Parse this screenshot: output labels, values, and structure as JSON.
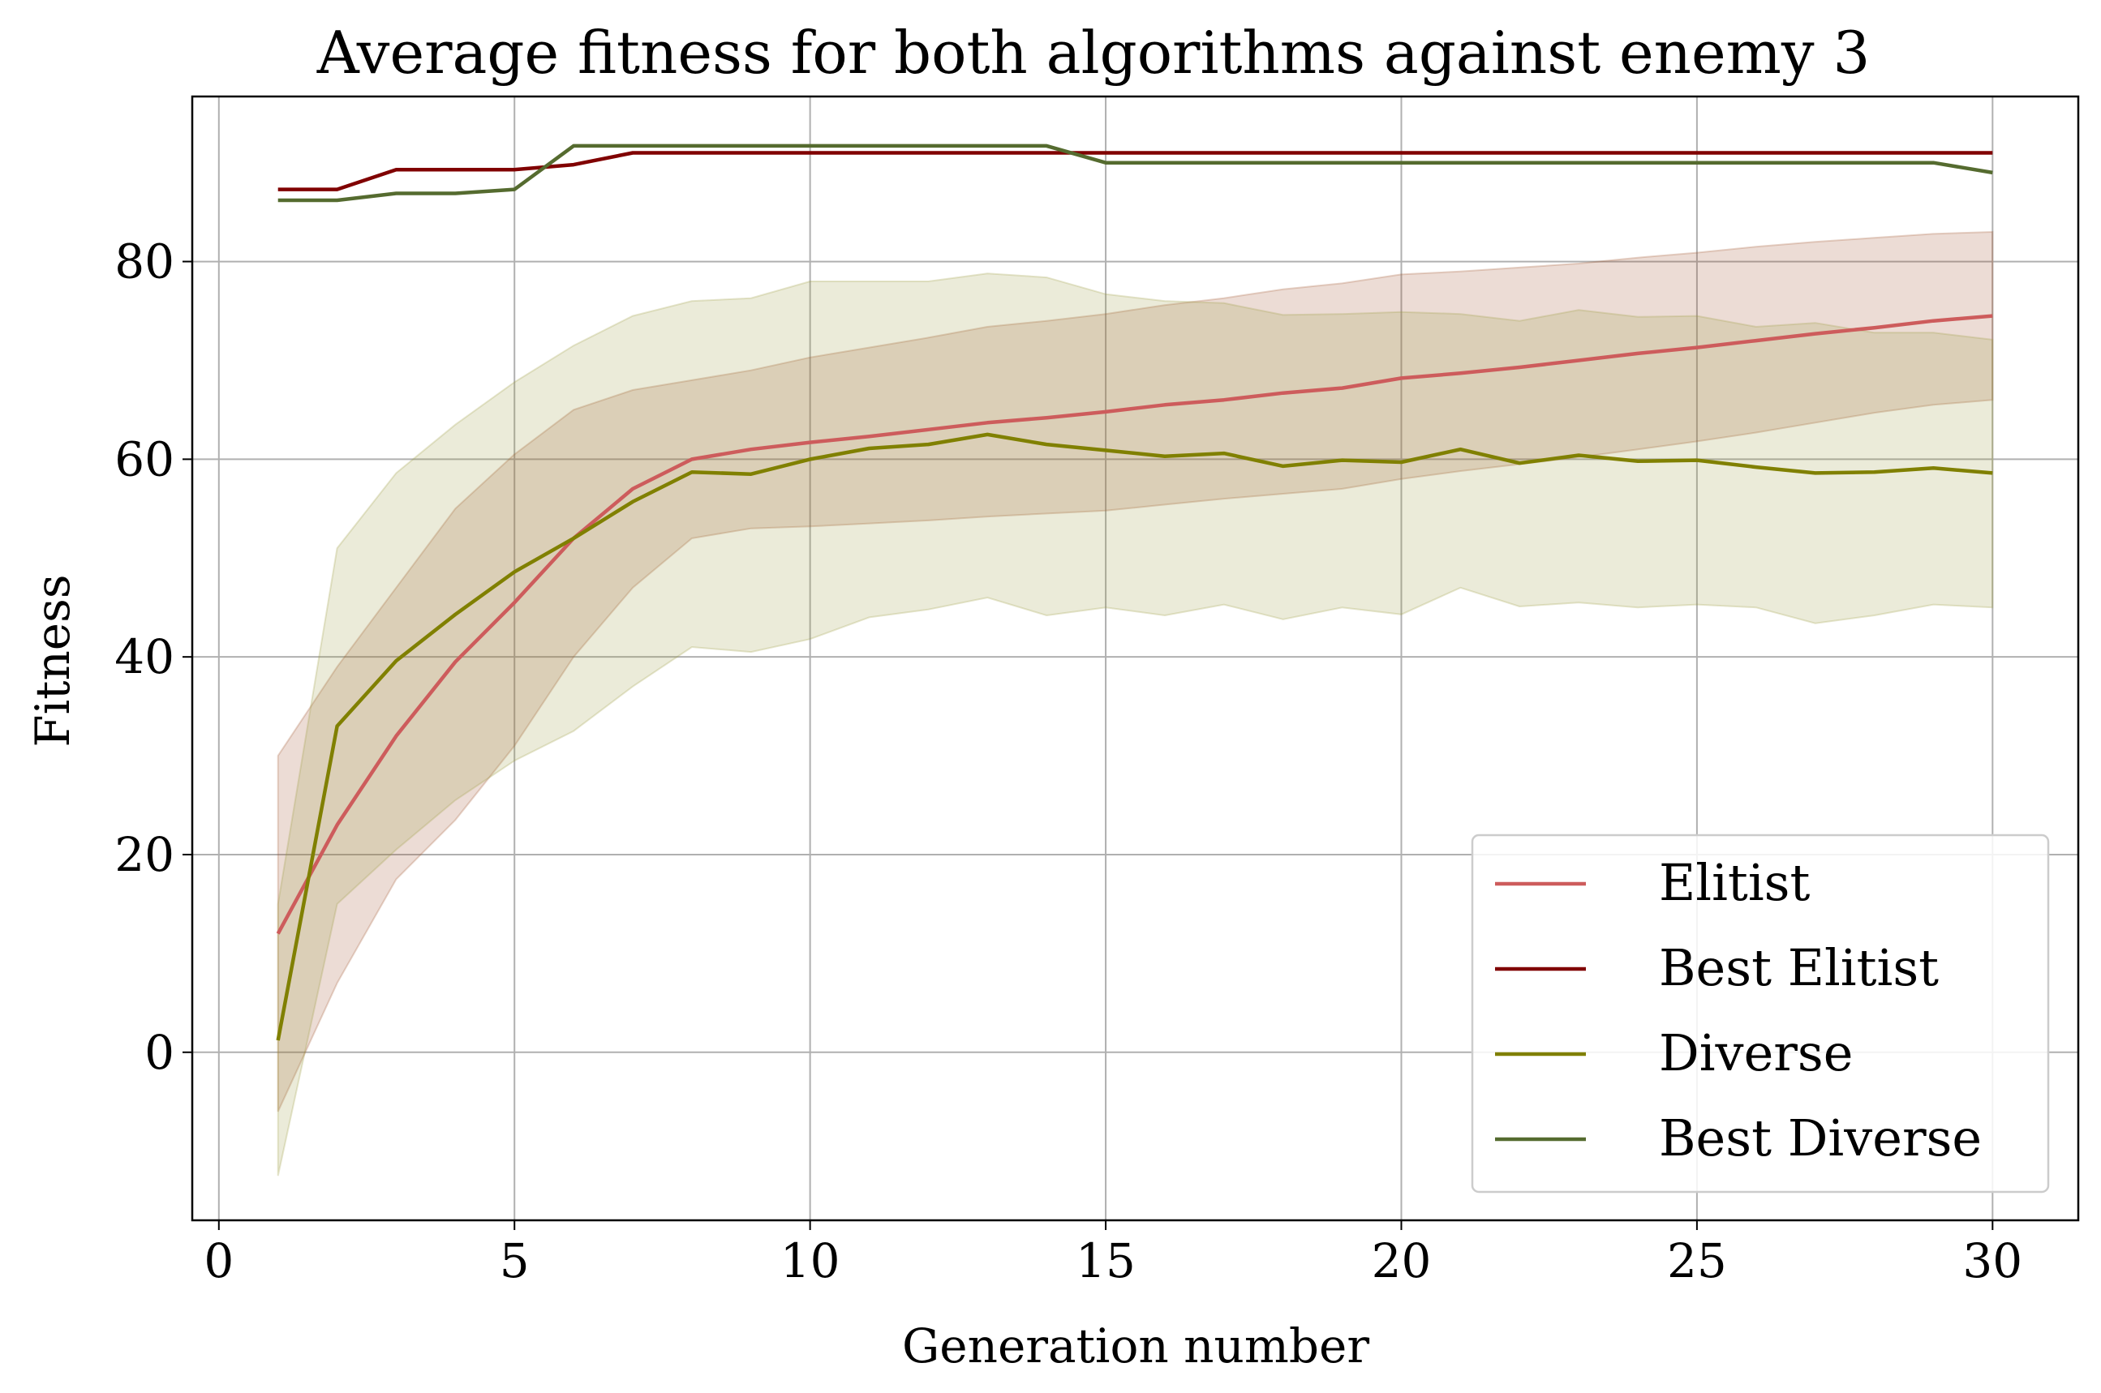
{
  "chart_data": {
    "type": "line",
    "title": "Average fitness for both algorithms against enemy 3",
    "xlabel": "Generation number",
    "ylabel": "Fitness",
    "xlim": [
      -0.45,
      31.45
    ],
    "ylim": [
      -17,
      96.7
    ],
    "xticks": [
      0,
      5,
      10,
      15,
      20,
      25,
      30
    ],
    "yticks": [
      0,
      20,
      40,
      60,
      80
    ],
    "grid": true,
    "legend_position": "bottom-right",
    "x": [
      1,
      2,
      3,
      4,
      5,
      6,
      7,
      8,
      9,
      10,
      11,
      12,
      13,
      14,
      15,
      16,
      17,
      18,
      19,
      20,
      21,
      22,
      23,
      24,
      25,
      26,
      27,
      28,
      29,
      30
    ],
    "series": [
      {
        "name": "Elitist",
        "color": "#cd5c5c",
        "band_color": "#a0522d",
        "values": [
          12,
          23,
          32,
          39.5,
          45.5,
          52,
          57,
          60,
          61,
          61.7,
          62.3,
          63,
          63.7,
          64.2,
          64.8,
          65.5,
          66,
          66.7,
          67.2,
          68.2,
          68.7,
          69.3,
          70,
          70.7,
          71.3,
          72,
          72.7,
          73.3,
          74,
          74.5
        ],
        "lower": [
          -6,
          7,
          17.5,
          23.5,
          31,
          40,
          47,
          52,
          53,
          53.2,
          53.5,
          53.8,
          54.2,
          54.5,
          54.8,
          55.4,
          56,
          56.5,
          57,
          58,
          58.8,
          59.5,
          60.2,
          61,
          61.8,
          62.7,
          63.7,
          64.7,
          65.5,
          66
        ],
        "upper": [
          30,
          39,
          47,
          55,
          60.5,
          65,
          67,
          68,
          69,
          70.3,
          71.3,
          72.3,
          73.4,
          74,
          74.7,
          75.6,
          76.3,
          77.2,
          77.8,
          78.7,
          79,
          79.4,
          79.8,
          80.4,
          80.9,
          81.5,
          82,
          82.4,
          82.8,
          83
        ]
      },
      {
        "name": "Best Elitist",
        "color": "#800000",
        "values": [
          87.3,
          87.3,
          89.3,
          89.3,
          89.3,
          89.8,
          91,
          91,
          91,
          91,
          91,
          91,
          91,
          91,
          91,
          91,
          91,
          91,
          91,
          91,
          91,
          91,
          91,
          91,
          91,
          91,
          91,
          91,
          91,
          91
        ]
      },
      {
        "name": "Diverse",
        "color": "#808000",
        "band_color": "#9b9b40",
        "values": [
          1.2,
          33,
          39.6,
          44.3,
          48.6,
          52,
          55.7,
          58.7,
          58.5,
          60,
          61.1,
          61.5,
          62.5,
          61.5,
          60.9,
          60.3,
          60.6,
          59.3,
          59.9,
          59.7,
          61,
          59.6,
          60.4,
          59.8,
          59.9,
          59.2,
          58.6,
          58.7,
          59.1,
          58.6
        ],
        "lower": [
          -12.5,
          15,
          20.5,
          25.5,
          29.5,
          32.5,
          37,
          41,
          40.5,
          41.8,
          44,
          44.8,
          46,
          44.2,
          45,
          44.2,
          45.3,
          43.8,
          45,
          44.3,
          47,
          45.1,
          45.5,
          45,
          45.3,
          45,
          43.4,
          44.2,
          45.3,
          45
        ],
        "upper": [
          15,
          51,
          58.6,
          63.5,
          67.8,
          71.5,
          74.5,
          76,
          76.3,
          78,
          78,
          78,
          78.8,
          78.4,
          76.7,
          76,
          75.8,
          74.6,
          74.7,
          74.9,
          74.7,
          74,
          75.1,
          74.4,
          74.5,
          73.4,
          73.8,
          72.8,
          72.8,
          72.1
        ]
      },
      {
        "name": "Best Diverse",
        "color": "#556b2f",
        "values": [
          86.2,
          86.2,
          86.9,
          86.9,
          87.3,
          91.7,
          91.7,
          91.7,
          91.7,
          91.7,
          91.7,
          91.7,
          91.7,
          91.7,
          90,
          90,
          90,
          90,
          90,
          90,
          90,
          90,
          90,
          90,
          90,
          90,
          90,
          90,
          90,
          89
        ]
      }
    ]
  }
}
